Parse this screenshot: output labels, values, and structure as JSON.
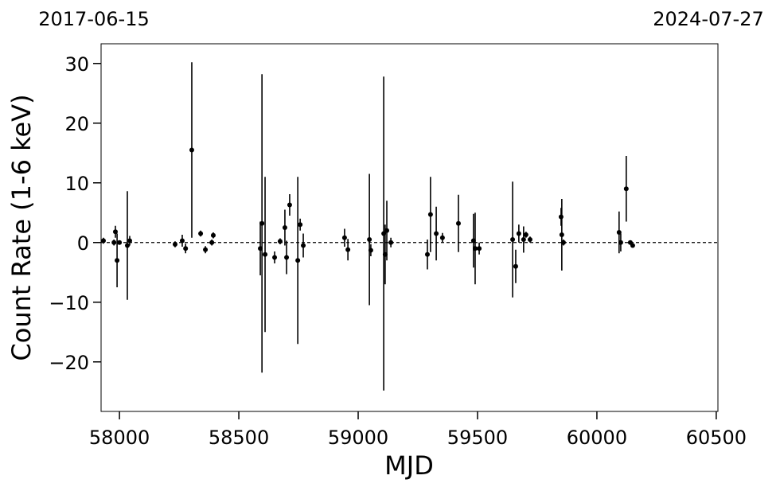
{
  "chart_data": {
    "type": "scatter",
    "top_labels": [
      "2017-06-15",
      "2024-07-27"
    ],
    "xlabel": "MJD",
    "ylabel": "Count Rate (1-6 keV)",
    "xlim": [
      57923,
      60507
    ],
    "ylim": [
      -28.3,
      33.3
    ],
    "xticks": [
      58000,
      58500,
      59000,
      59500,
      60000,
      60500
    ],
    "yticks": [
      {
        "value": -20,
        "label": "−20"
      },
      {
        "value": -10,
        "label": "−10"
      },
      0,
      10,
      20,
      30
    ],
    "hline": 0,
    "x": [
      57933,
      57977,
      57983,
      57990,
      58000,
      58033,
      58043,
      58233,
      58263,
      58277,
      58303,
      58340,
      58360,
      58387,
      58393,
      58590,
      58597,
      58610,
      58650,
      58673,
      58693,
      58700,
      58713,
      58747,
      58757,
      58770,
      58943,
      58957,
      59047,
      59053,
      59107,
      59113,
      59120,
      59137,
      59290,
      59303,
      59327,
      59353,
      59420,
      59483,
      59490,
      59507,
      59647,
      59660,
      59673,
      59693,
      59703,
      59720,
      59850,
      59853,
      59860,
      60093,
      60100,
      60123,
      60140,
      60150
    ],
    "series": [
      {
        "color": "#000000",
        "values": [
          0.3,
          0,
          1.8,
          -3,
          0,
          -0.5,
          0.3,
          -0.3,
          0.3,
          -1,
          15.5,
          1.5,
          -1.2,
          0,
          1.2,
          -1,
          3.2,
          -2,
          -2.5,
          0.2,
          2.5,
          -2.5,
          6.3,
          -3,
          3,
          -0.5,
          0.8,
          -1.2,
          0.5,
          -1.3,
          1.5,
          -2,
          2,
          0,
          -2,
          4.7,
          1.5,
          0.8,
          3.2,
          0.3,
          -1,
          -1,
          0.5,
          -4,
          1.5,
          0.5,
          1.3,
          0.5,
          4.3,
          1.3,
          0,
          1.7,
          0,
          9,
          0,
          -0.5
        ],
        "errors": [
          0.5,
          0.5,
          1,
          4.5,
          0.3,
          9.1,
          0.8,
          0.5,
          1,
          0.8,
          14.7,
          0.5,
          0.6,
          0.5,
          0.5,
          4.5,
          25,
          13,
          1,
          0.5,
          3,
          2.8,
          1.8,
          14,
          1,
          2,
          1.5,
          1.8,
          11,
          1,
          26.3,
          5,
          5,
          0.8,
          2.5,
          6.3,
          4.5,
          0.8,
          4.8,
          4.5,
          6,
          1,
          9.7,
          2.8,
          1.5,
          2.2,
          0.5,
          0.5,
          1.5,
          6,
          0.5,
          3.5,
          1.5,
          5.5,
          0.3,
          0.3
        ]
      }
    ]
  }
}
